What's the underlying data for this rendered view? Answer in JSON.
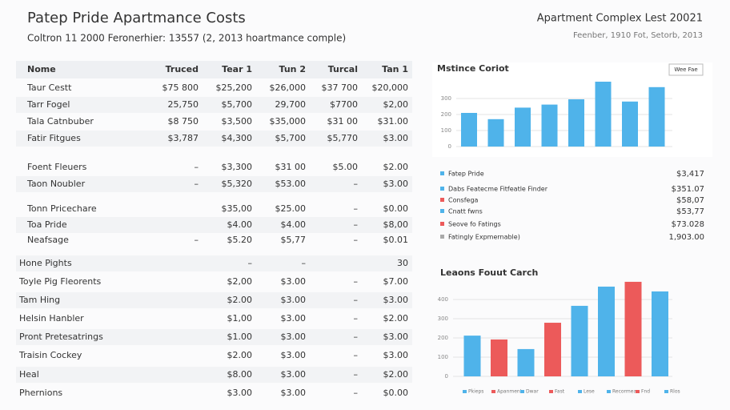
{
  "header": {
    "title": "Patep Pride Apartmance Costs",
    "subtitle": "Coltron 11 2000 Feronerhier: 13557 (2, 2013 hoartmance comple)",
    "right_title": "Apartment Complex Lest 20021",
    "right_subtitle": "Feenber, 1910 Fot, Setorb, 2013"
  },
  "table": {
    "columns": [
      "Nome",
      "Truced",
      "Tear 1",
      "Tun 2",
      "Turcal",
      "Tan 1"
    ],
    "rows": [
      [
        "Taur Cestt",
        "$75 800",
        "$25,200",
        "$26,000",
        "$37 700",
        "$20,000"
      ],
      [
        "Tarr Fogel",
        "25,750",
        "$5,700",
        "29,700",
        "$7700",
        "$2,00"
      ],
      [
        "Tala Catnbuber",
        "$8 750",
        "$3,500",
        "$35,000",
        "$31 00",
        "$31.00"
      ],
      [
        "Fatir Fitgues",
        "$3,787",
        "$4,300",
        "$5,700",
        "$5,770",
        "$3.00"
      ],
      [
        "Foent Fleuers",
        "–",
        "$3,300",
        "$31 00",
        "$5.00",
        "$2.00"
      ],
      [
        "Taon Noubler",
        "–",
        "$5,320",
        "$53.00",
        "–",
        "$3.00"
      ],
      [
        "Tonn Pricechare",
        null,
        "$35,00",
        "$25.00",
        "–",
        "$0.00"
      ],
      [
        "Toa Pride",
        null,
        "$4.00",
        "$4.00",
        "–",
        "$8,00"
      ],
      [
        "Neafsage",
        "–",
        "$5.20",
        "$5,77",
        "–",
        "$0.01"
      ],
      [
        "Hone Pights",
        null,
        "–",
        "–",
        null,
        "30"
      ],
      [
        "Toyle Pig Fleorents",
        null,
        "$2,00",
        "$3.00",
        "–",
        "$7.00"
      ],
      [
        "Tam Hing",
        null,
        "$2.00",
        "$3.00",
        "–",
        "$3.00"
      ],
      [
        "Helsin Hanbler",
        null,
        "$1,00",
        "$3.00",
        "–",
        "$2.00"
      ],
      [
        "Pront Pretesatrings",
        null,
        "$1.00",
        "$3.00",
        "–",
        "$3.00"
      ],
      [
        "Traisin Cockey",
        null,
        "$2.00",
        "$3.00",
        "–",
        "$3.00"
      ],
      [
        "Heal",
        null,
        "$8.00",
        "$3.00",
        "–",
        "$2.00"
      ],
      [
        "Phernions",
        null,
        "$3.00",
        "$3.00",
        "–",
        "$0.00"
      ]
    ]
  },
  "chart_data": [
    {
      "type": "bar",
      "title": "Mstince Coriot",
      "button": "Wee Fae",
      "values": [
        210,
        171,
        243,
        262,
        295,
        405,
        281,
        371
      ],
      "colors": [
        "#4fb3ea",
        "#4fb3ea",
        "#4fb3ea",
        "#4fb3ea",
        "#4fb3ea",
        "#4fb3ea",
        "#4fb3ea",
        "#4fb3ea"
      ],
      "ylim": [
        0,
        420
      ],
      "yticks": [
        0,
        100,
        200,
        300
      ]
    },
    {
      "type": "bar",
      "title": "Leaons Fouut Carch",
      "values": [
        212,
        192,
        142,
        279,
        367,
        467,
        492,
        442
      ],
      "colors": [
        "#4fb3ea",
        "#ec5a5a",
        "#4fb3ea",
        "#ec5a5a",
        "#4fb3ea",
        "#4fb3ea",
        "#ec5a5a",
        "#4fb3ea"
      ],
      "ylim": [
        0,
        500
      ],
      "yticks": [
        0,
        100,
        200,
        300,
        400
      ],
      "legend": [
        "Pkieps",
        "Apanment",
        "Dwar",
        "Fast",
        "Lese",
        "Recormeas",
        "Fnd",
        "Rlos"
      ]
    }
  ],
  "legend_list": [
    {
      "name": "Fatep Pride",
      "value": "$3,417",
      "color": "#4fb3ea"
    },
    {
      "name": "Dabs Featecme Fitfeatle Finder",
      "value": "$351.07",
      "color": "#4fb3ea"
    },
    {
      "name": "Consfega",
      "value": "$58,07",
      "color": "#ec5a5a"
    },
    {
      "name": "Cnatt fwns",
      "value": "$53,77",
      "color": "#4fb3ea"
    },
    {
      "name": "Seove fo Fatings",
      "value": "$73.028",
      "color": "#ec5a5a"
    },
    {
      "name": "Fatingly Expmernable)",
      "value": "1,903.00",
      "color": "#aaaaaa"
    }
  ]
}
